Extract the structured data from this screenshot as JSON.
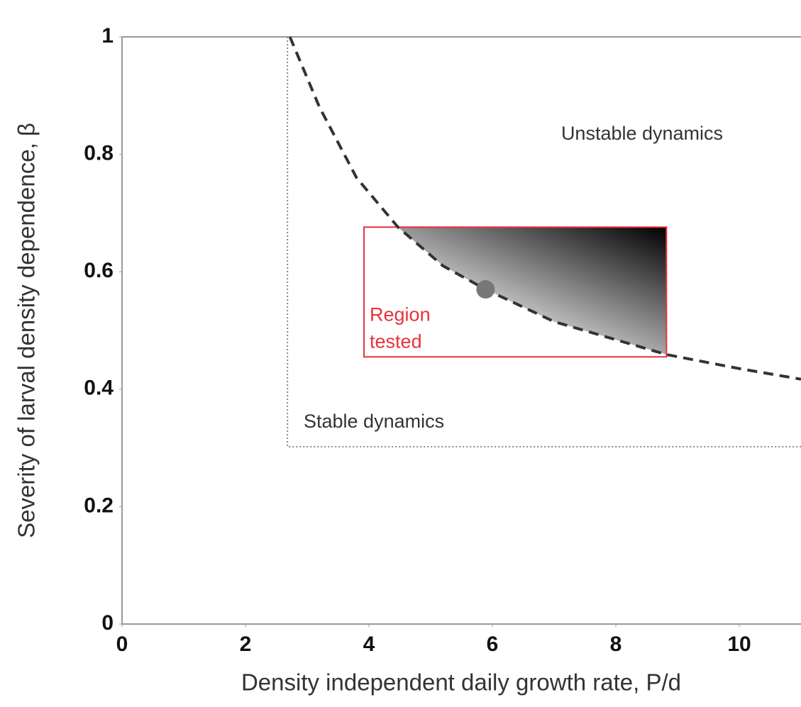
{
  "chart_data": {
    "type": "line",
    "x_label": "Density independent daily growth rate, P/d",
    "y_label": "Severity of larval density dependence, β",
    "xlim": [
      0,
      11
    ],
    "ylim": [
      0,
      1
    ],
    "xticks": [
      0,
      2,
      4,
      6,
      8,
      10
    ],
    "yticks": [
      0,
      0.2,
      0.4,
      0.6,
      0.8,
      1
    ],
    "series": [
      {
        "color": "#333333",
        "dashed": true,
        "x": [
          2.72,
          3.2,
          3.8,
          4.47,
          5.2,
          5.89,
          7,
          8.82,
          10,
          11
        ],
        "values": [
          1,
          0.88,
          0.76,
          0.676,
          0.61,
          0.57,
          0.515,
          0.459,
          0.435,
          0.417
        ]
      }
    ],
    "stability_region": {
      "xlim": [
        2.68,
        11
      ],
      "ylim": [
        0.302,
        1
      ],
      "color": "#888888"
    },
    "region_tested": {
      "label": [
        "Region",
        "tested"
      ],
      "xlim": [
        3.92,
        8.82
      ],
      "ylim": [
        0.455,
        0.676
      ],
      "color": "#e8323c"
    },
    "point": {
      "x": 5.89,
      "y": 0.57,
      "color": "#777777"
    },
    "annotations": [
      "Unstable dynamics",
      "Stable dynamics"
    ]
  }
}
